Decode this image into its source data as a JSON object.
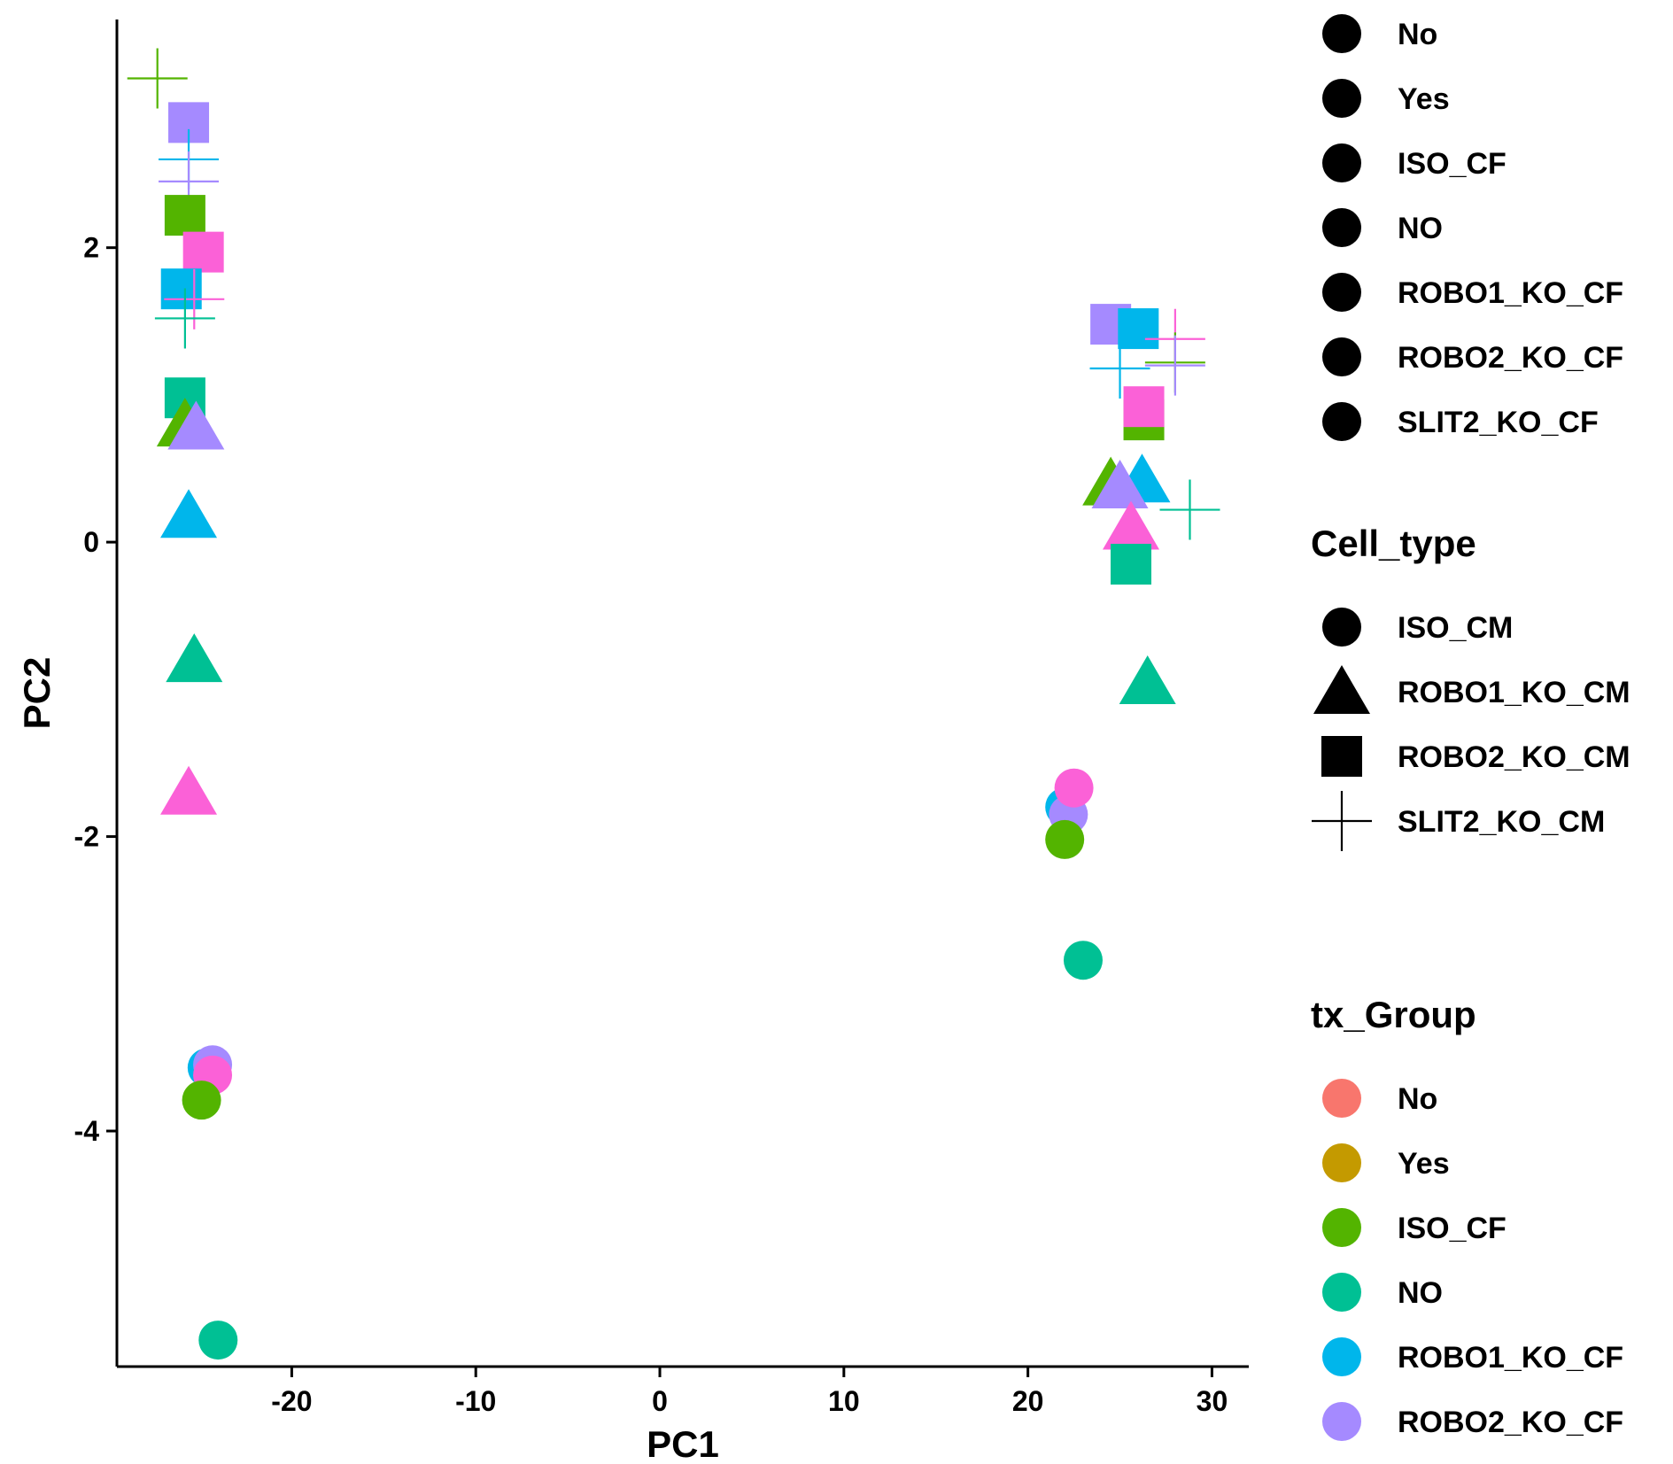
{
  "chart_data": {
    "type": "scatter",
    "xlabel": "PC1",
    "ylabel": "PC2",
    "xlim": [
      -29.5,
      32
    ],
    "ylim": [
      -5.6,
      3.55
    ],
    "x_ticks": [
      -20,
      -10,
      0,
      10,
      20,
      30
    ],
    "y_ticks": [
      -4,
      -2,
      0,
      2
    ],
    "grid": false,
    "legend_placement": "right",
    "colors": {
      "No": "#F8766D",
      "Yes": "#C49A00",
      "ISO_CF": "#53B400",
      "NO": "#00C094",
      "ROBO1_KO_CF": "#00B6EB",
      "ROBO2_KO_CF": "#A58AFF",
      "SLIT2_KO_CF": "#FB61D7"
    },
    "shapes": {
      "ISO_CM": "circle",
      "ROBO1_KO_CM": "triangle",
      "ROBO2_KO_CM": "square",
      "SLIT2_KO_CM": "plus"
    },
    "legends": [
      {
        "title": "",
        "kind": "shape-circle",
        "entries": [
          "No",
          "Yes",
          "ISO_CF",
          "NO",
          "ROBO1_KO_CF",
          "ROBO2_KO_CF",
          "SLIT2_KO_CF"
        ]
      },
      {
        "title": "Cell_type",
        "kind": "shape",
        "entries": [
          "ISO_CM",
          "ROBO1_KO_CM",
          "ROBO2_KO_CM",
          "SLIT2_KO_CM"
        ]
      },
      {
        "title": "tx_Group",
        "kind": "color",
        "entries": [
          "No",
          "Yes",
          "ISO_CF",
          "NO",
          "ROBO1_KO_CF",
          "ROBO2_KO_CF",
          "SLIT2_KO_CF"
        ]
      }
    ],
    "points": [
      {
        "x": -27.3,
        "y": 3.15,
        "shape": "SLIT2_KO_CM",
        "group": "ISO_CF"
      },
      {
        "x": -25.6,
        "y": 2.85,
        "shape": "ROBO2_KO_CM",
        "group": "ROBO2_KO_CF"
      },
      {
        "x": -25.6,
        "y": 2.6,
        "shape": "SLIT2_KO_CM",
        "group": "ROBO1_KO_CF"
      },
      {
        "x": -25.6,
        "y": 2.45,
        "shape": "SLIT2_KO_CM",
        "group": "ROBO2_KO_CF"
      },
      {
        "x": -25.8,
        "y": 2.22,
        "shape": "ROBO2_KO_CM",
        "group": "ISO_CF"
      },
      {
        "x": -24.8,
        "y": 1.97,
        "shape": "ROBO2_KO_CM",
        "group": "SLIT2_KO_CF"
      },
      {
        "x": -26.0,
        "y": 1.72,
        "shape": "ROBO2_KO_CM",
        "group": "ROBO1_KO_CF"
      },
      {
        "x": -25.3,
        "y": 1.65,
        "shape": "SLIT2_KO_CM",
        "group": "SLIT2_KO_CF"
      },
      {
        "x": -25.8,
        "y": 1.52,
        "shape": "SLIT2_KO_CM",
        "group": "NO"
      },
      {
        "x": -25.8,
        "y": 0.98,
        "shape": "ROBO2_KO_CM",
        "group": "NO"
      },
      {
        "x": -25.8,
        "y": 0.8,
        "shape": "ROBO1_KO_CM",
        "group": "ISO_CF"
      },
      {
        "x": -25.2,
        "y": 0.78,
        "shape": "ROBO1_KO_CM",
        "group": "ROBO2_KO_CF"
      },
      {
        "x": -25.6,
        "y": 0.18,
        "shape": "ROBO1_KO_CM",
        "group": "ROBO1_KO_CF"
      },
      {
        "x": -25.3,
        "y": -0.8,
        "shape": "ROBO1_KO_CM",
        "group": "NO"
      },
      {
        "x": -25.6,
        "y": -1.7,
        "shape": "ROBO1_KO_CM",
        "group": "SLIT2_KO_CF"
      },
      {
        "x": -24.6,
        "y": -3.57,
        "shape": "ISO_CM",
        "group": "ROBO1_KO_CF"
      },
      {
        "x": -24.3,
        "y": -3.55,
        "shape": "ISO_CM",
        "group": "ROBO2_KO_CF"
      },
      {
        "x": -24.3,
        "y": -3.62,
        "shape": "ISO_CM",
        "group": "SLIT2_KO_CF"
      },
      {
        "x": -24.9,
        "y": -3.79,
        "shape": "ISO_CM",
        "group": "ISO_CF"
      },
      {
        "x": -24.0,
        "y": -5.42,
        "shape": "ISO_CM",
        "group": "NO"
      },
      {
        "x": 24.5,
        "y": 1.48,
        "shape": "ROBO2_KO_CM",
        "group": "ROBO2_KO_CF"
      },
      {
        "x": 26.0,
        "y": 1.45,
        "shape": "ROBO2_KO_CM",
        "group": "ROBO1_KO_CF"
      },
      {
        "x": 28.0,
        "y": 1.38,
        "shape": "SLIT2_KO_CM",
        "group": "SLIT2_KO_CF"
      },
      {
        "x": 28.0,
        "y": 1.22,
        "shape": "SLIT2_KO_CM",
        "group": "ISO_CF"
      },
      {
        "x": 28.0,
        "y": 1.2,
        "shape": "SLIT2_KO_CM",
        "group": "ROBO2_KO_CF"
      },
      {
        "x": 25.0,
        "y": 1.18,
        "shape": "SLIT2_KO_CM",
        "group": "ROBO1_KO_CF"
      },
      {
        "x": 26.3,
        "y": 0.83,
        "shape": "ROBO2_KO_CM",
        "group": "ISO_CF"
      },
      {
        "x": 26.3,
        "y": 0.92,
        "shape": "ROBO2_KO_CM",
        "group": "SLIT2_KO_CF"
      },
      {
        "x": 24.5,
        "y": 0.4,
        "shape": "ROBO1_KO_CM",
        "group": "ISO_CF"
      },
      {
        "x": 26.2,
        "y": 0.42,
        "shape": "ROBO1_KO_CM",
        "group": "ROBO1_KO_CF"
      },
      {
        "x": 25.0,
        "y": 0.38,
        "shape": "ROBO1_KO_CM",
        "group": "ROBO2_KO_CF"
      },
      {
        "x": 28.8,
        "y": 0.22,
        "shape": "SLIT2_KO_CM",
        "group": "NO"
      },
      {
        "x": 25.6,
        "y": 0.1,
        "shape": "ROBO1_KO_CM",
        "group": "SLIT2_KO_CF"
      },
      {
        "x": 25.6,
        "y": -0.15,
        "shape": "ROBO2_KO_CM",
        "group": "NO"
      },
      {
        "x": 26.5,
        "y": -0.95,
        "shape": "ROBO1_KO_CM",
        "group": "NO"
      },
      {
        "x": 22.0,
        "y": -1.8,
        "shape": "ISO_CM",
        "group": "ROBO1_KO_CF"
      },
      {
        "x": 22.2,
        "y": -1.85,
        "shape": "ISO_CM",
        "group": "ROBO2_KO_CF"
      },
      {
        "x": 22.5,
        "y": -1.67,
        "shape": "ISO_CM",
        "group": "SLIT2_KO_CF"
      },
      {
        "x": 22.0,
        "y": -2.02,
        "shape": "ISO_CM",
        "group": "ISO_CF"
      },
      {
        "x": 23.0,
        "y": -2.84,
        "shape": "ISO_CM",
        "group": "NO"
      }
    ]
  }
}
